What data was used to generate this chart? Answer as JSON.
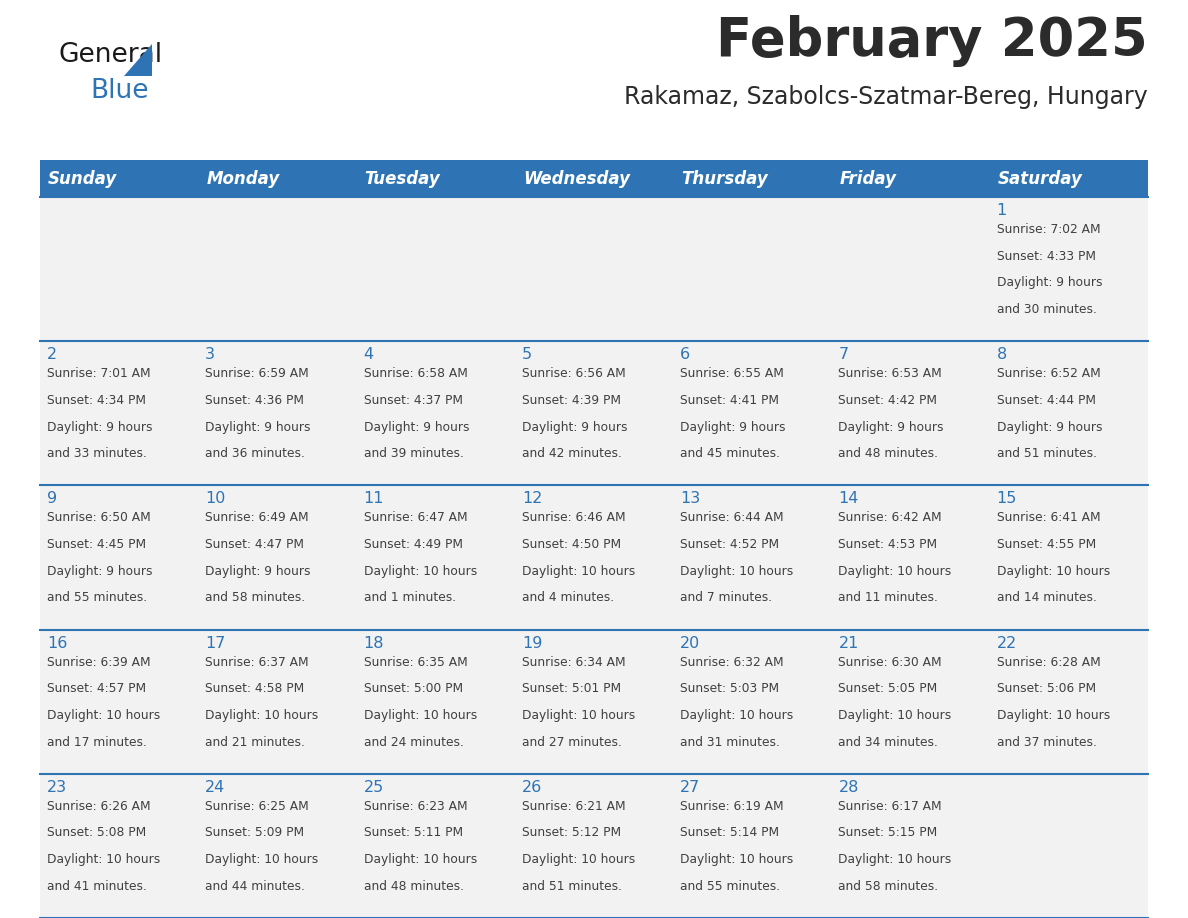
{
  "title": "February 2025",
  "subtitle": "Rakamaz, Szabolcs-Szatmar-Bereg, Hungary",
  "days_of_week": [
    "Sunday",
    "Monday",
    "Tuesday",
    "Wednesday",
    "Thursday",
    "Friday",
    "Saturday"
  ],
  "header_bg": "#2E74B5",
  "header_text": "#FFFFFF",
  "cell_bg": "#F2F2F2",
  "separator_color": "#2E74B5",
  "day_number_color": "#2E74B5",
  "text_color": "#404040",
  "title_color": "#2B2B2B",
  "subtitle_color": "#2B2B2B",
  "logo_general_color": "#1A1A1A",
  "logo_blue_color": "#2E74B5",
  "calendar_data": [
    {
      "day": 1,
      "col": 6,
      "row": 0,
      "sunrise": "7:02 AM",
      "sunset": "4:33 PM",
      "daylight_hours": 9,
      "daylight_minutes": 30
    },
    {
      "day": 2,
      "col": 0,
      "row": 1,
      "sunrise": "7:01 AM",
      "sunset": "4:34 PM",
      "daylight_hours": 9,
      "daylight_minutes": 33
    },
    {
      "day": 3,
      "col": 1,
      "row": 1,
      "sunrise": "6:59 AM",
      "sunset": "4:36 PM",
      "daylight_hours": 9,
      "daylight_minutes": 36
    },
    {
      "day": 4,
      "col": 2,
      "row": 1,
      "sunrise": "6:58 AM",
      "sunset": "4:37 PM",
      "daylight_hours": 9,
      "daylight_minutes": 39
    },
    {
      "day": 5,
      "col": 3,
      "row": 1,
      "sunrise": "6:56 AM",
      "sunset": "4:39 PM",
      "daylight_hours": 9,
      "daylight_minutes": 42
    },
    {
      "day": 6,
      "col": 4,
      "row": 1,
      "sunrise": "6:55 AM",
      "sunset": "4:41 PM",
      "daylight_hours": 9,
      "daylight_minutes": 45
    },
    {
      "day": 7,
      "col": 5,
      "row": 1,
      "sunrise": "6:53 AM",
      "sunset": "4:42 PM",
      "daylight_hours": 9,
      "daylight_minutes": 48
    },
    {
      "day": 8,
      "col": 6,
      "row": 1,
      "sunrise": "6:52 AM",
      "sunset": "4:44 PM",
      "daylight_hours": 9,
      "daylight_minutes": 51
    },
    {
      "day": 9,
      "col": 0,
      "row": 2,
      "sunrise": "6:50 AM",
      "sunset": "4:45 PM",
      "daylight_hours": 9,
      "daylight_minutes": 55
    },
    {
      "day": 10,
      "col": 1,
      "row": 2,
      "sunrise": "6:49 AM",
      "sunset": "4:47 PM",
      "daylight_hours": 9,
      "daylight_minutes": 58
    },
    {
      "day": 11,
      "col": 2,
      "row": 2,
      "sunrise": "6:47 AM",
      "sunset": "4:49 PM",
      "daylight_hours": 10,
      "daylight_minutes": 1
    },
    {
      "day": 12,
      "col": 3,
      "row": 2,
      "sunrise": "6:46 AM",
      "sunset": "4:50 PM",
      "daylight_hours": 10,
      "daylight_minutes": 4
    },
    {
      "day": 13,
      "col": 4,
      "row": 2,
      "sunrise": "6:44 AM",
      "sunset": "4:52 PM",
      "daylight_hours": 10,
      "daylight_minutes": 7
    },
    {
      "day": 14,
      "col": 5,
      "row": 2,
      "sunrise": "6:42 AM",
      "sunset": "4:53 PM",
      "daylight_hours": 10,
      "daylight_minutes": 11
    },
    {
      "day": 15,
      "col": 6,
      "row": 2,
      "sunrise": "6:41 AM",
      "sunset": "4:55 PM",
      "daylight_hours": 10,
      "daylight_minutes": 14
    },
    {
      "day": 16,
      "col": 0,
      "row": 3,
      "sunrise": "6:39 AM",
      "sunset": "4:57 PM",
      "daylight_hours": 10,
      "daylight_minutes": 17
    },
    {
      "day": 17,
      "col": 1,
      "row": 3,
      "sunrise": "6:37 AM",
      "sunset": "4:58 PM",
      "daylight_hours": 10,
      "daylight_minutes": 21
    },
    {
      "day": 18,
      "col": 2,
      "row": 3,
      "sunrise": "6:35 AM",
      "sunset": "5:00 PM",
      "daylight_hours": 10,
      "daylight_minutes": 24
    },
    {
      "day": 19,
      "col": 3,
      "row": 3,
      "sunrise": "6:34 AM",
      "sunset": "5:01 PM",
      "daylight_hours": 10,
      "daylight_minutes": 27
    },
    {
      "day": 20,
      "col": 4,
      "row": 3,
      "sunrise": "6:32 AM",
      "sunset": "5:03 PM",
      "daylight_hours": 10,
      "daylight_minutes": 31
    },
    {
      "day": 21,
      "col": 5,
      "row": 3,
      "sunrise": "6:30 AM",
      "sunset": "5:05 PM",
      "daylight_hours": 10,
      "daylight_minutes": 34
    },
    {
      "day": 22,
      "col": 6,
      "row": 3,
      "sunrise": "6:28 AM",
      "sunset": "5:06 PM",
      "daylight_hours": 10,
      "daylight_minutes": 37
    },
    {
      "day": 23,
      "col": 0,
      "row": 4,
      "sunrise": "6:26 AM",
      "sunset": "5:08 PM",
      "daylight_hours": 10,
      "daylight_minutes": 41
    },
    {
      "day": 24,
      "col": 1,
      "row": 4,
      "sunrise": "6:25 AM",
      "sunset": "5:09 PM",
      "daylight_hours": 10,
      "daylight_minutes": 44
    },
    {
      "day": 25,
      "col": 2,
      "row": 4,
      "sunrise": "6:23 AM",
      "sunset": "5:11 PM",
      "daylight_hours": 10,
      "daylight_minutes": 48
    },
    {
      "day": 26,
      "col": 3,
      "row": 4,
      "sunrise": "6:21 AM",
      "sunset": "5:12 PM",
      "daylight_hours": 10,
      "daylight_minutes": 51
    },
    {
      "day": 27,
      "col": 4,
      "row": 4,
      "sunrise": "6:19 AM",
      "sunset": "5:14 PM",
      "daylight_hours": 10,
      "daylight_minutes": 55
    },
    {
      "day": 28,
      "col": 5,
      "row": 4,
      "sunrise": "6:17 AM",
      "sunset": "5:15 PM",
      "daylight_hours": 10,
      "daylight_minutes": 58
    }
  ]
}
